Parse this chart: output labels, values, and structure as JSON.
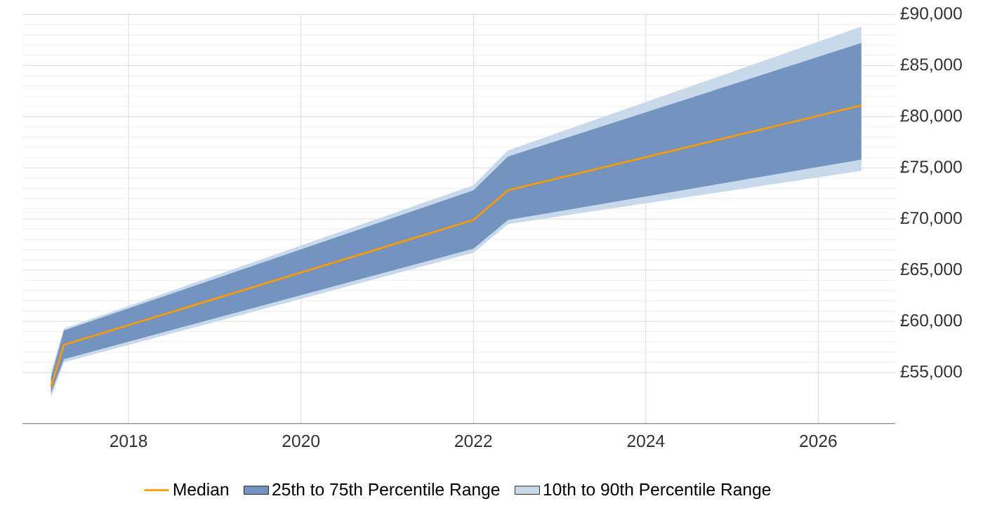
{
  "chart_data": {
    "type": "line",
    "x": [
      2017.1,
      2017.25,
      2022,
      2022.4,
      2026.5
    ],
    "series": [
      {
        "name": "10th to 90th Percentile Range",
        "color": "#c9d9ec",
        "values": [
          null,
          null,
          null,
          null,
          null
        ],
        "lower": [
          52500,
          56000,
          66700,
          69500,
          74700
        ],
        "upper": [
          55000,
          59300,
          73300,
          76700,
          88800
        ]
      },
      {
        "name": "25th to 75th Percentile Range",
        "color": "#7394bf",
        "values": [
          null,
          null,
          null,
          null,
          null
        ],
        "lower": [
          53000,
          56300,
          67100,
          69900,
          75800
        ],
        "upper": [
          54500,
          59100,
          72800,
          76100,
          87200
        ]
      },
      {
        "name": "Median",
        "color": "#ff9900",
        "values": [
          53600,
          57700,
          69900,
          72800,
          81100
        ]
      }
    ],
    "xlim": [
      2016.77,
      2026.89
    ],
    "ylim": [
      50000,
      90000
    ],
    "xticks": [
      2018,
      2020,
      2022,
      2024,
      2026
    ],
    "yticks": [
      {
        "value": 55000,
        "label": "£55,000"
      },
      {
        "value": 60000,
        "label": "£60,000"
      },
      {
        "value": 65000,
        "label": "£65,000"
      },
      {
        "value": 70000,
        "label": "£70,000"
      },
      {
        "value": 75000,
        "label": "£75,000"
      },
      {
        "value": 80000,
        "label": "£80,000"
      },
      {
        "value": 85000,
        "label": "£85,000"
      },
      {
        "value": 90000,
        "label": "£90,000"
      }
    ],
    "grid": true,
    "legend": "bottom",
    "marker": "none",
    "line_style": "solid"
  }
}
